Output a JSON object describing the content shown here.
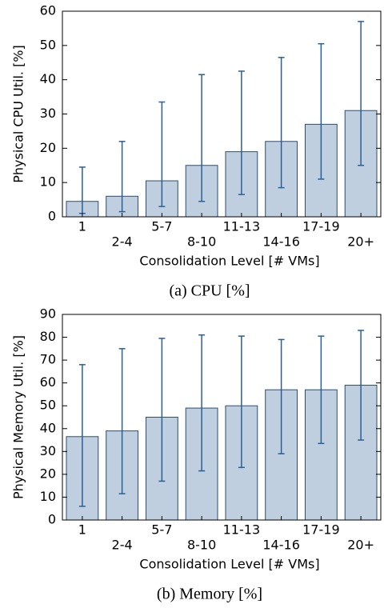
{
  "chart_data": [
    {
      "type": "bar",
      "caption": "(a) CPU [%]",
      "ylabel": "Physical CPU Util. [%]",
      "xlabel": "Consolidation Level [# VMs]",
      "categories": [
        "1",
        "2-4",
        "5-7",
        "8-10",
        "11-13",
        "14-16",
        "17-19",
        "20+"
      ],
      "values": [
        4.5,
        6,
        10.5,
        15,
        19,
        22,
        27,
        31
      ],
      "lows": [
        1,
        1.5,
        3,
        4.5,
        6.5,
        8.5,
        11,
        15
      ],
      "highs": [
        14.5,
        22,
        33.5,
        41.5,
        42.5,
        46.5,
        50.5,
        57
      ],
      "color": "#bfcfe0",
      "error_color": "#2a5f96",
      "ylim": [
        0,
        60
      ],
      "yticks": [
        0,
        10,
        20,
        30,
        40,
        50,
        60
      ]
    },
    {
      "type": "bar",
      "caption": "(b) Memory [%]",
      "ylabel": "Physical Memory Util. [%]",
      "xlabel": "Consolidation Level [# VMs]",
      "categories": [
        "1",
        "2-4",
        "5-7",
        "8-10",
        "11-13",
        "14-16",
        "17-19",
        "20+"
      ],
      "values": [
        36.5,
        39,
        45,
        49,
        50,
        57,
        57,
        59
      ],
      "lows": [
        6,
        11.5,
        17,
        21.5,
        23,
        29,
        33.5,
        35
      ],
      "highs": [
        68,
        75,
        79.5,
        81,
        80.5,
        79,
        80.5,
        83
      ],
      "color": "#bfcfe0",
      "error_color": "#2a5f96",
      "ylim": [
        0,
        90
      ],
      "yticks": [
        0,
        10,
        20,
        30,
        40,
        50,
        60,
        70,
        80,
        90
      ]
    }
  ]
}
